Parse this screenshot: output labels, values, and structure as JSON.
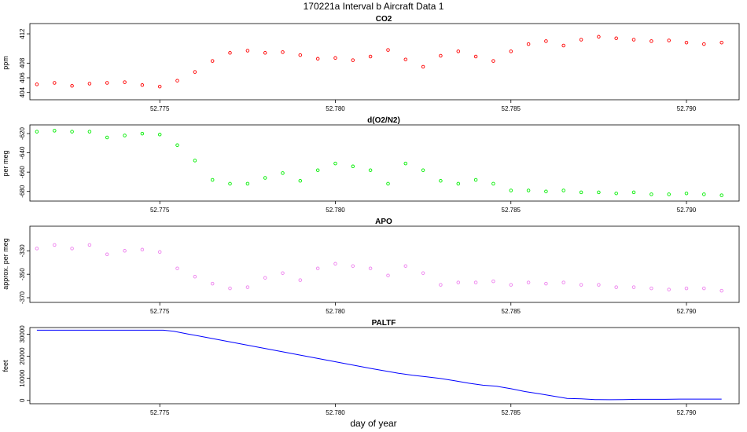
{
  "figure": {
    "title": "170221a   Interval b Aircraft Data 1",
    "xlabel": "day of year"
  },
  "chart_data": [
    {
      "type": "scatter",
      "title": "CO2",
      "ylabel": "ppm",
      "xlim": [
        52.7713,
        52.7915
      ],
      "ylim": [
        403.0,
        413.4
      ],
      "x_ticks": [
        "52.775",
        "52.780",
        "52.785",
        "52.790"
      ],
      "y_ticks": [
        "404",
        "406",
        "408",
        "412"
      ],
      "color": "#ff0000",
      "series": [
        {
          "x": [
            52.7715,
            52.772,
            52.7725,
            52.773,
            52.7735,
            52.774,
            52.7745,
            52.775,
            52.7755,
            52.776,
            52.7765,
            52.777,
            52.7775,
            52.778,
            52.7785,
            52.779,
            52.7795,
            52.78,
            52.7805,
            52.781,
            52.7815,
            52.782,
            52.7825,
            52.783,
            52.7835,
            52.784,
            52.7845,
            52.785,
            52.7855,
            52.786,
            52.7865,
            52.787,
            52.7875,
            52.788,
            52.7885,
            52.789,
            52.7895,
            52.79,
            52.7905,
            52.791
          ],
          "y": [
            405.1,
            405.3,
            404.9,
            405.2,
            405.3,
            405.4,
            405.0,
            404.8,
            405.6,
            406.8,
            408.3,
            409.4,
            409.7,
            409.4,
            409.5,
            409.1,
            408.6,
            408.7,
            408.4,
            408.9,
            409.8,
            408.5,
            407.5,
            409.0,
            409.6,
            408.9,
            408.3,
            409.6,
            410.6,
            411.0,
            410.4,
            411.2,
            411.6,
            411.4,
            411.2,
            411.0,
            411.1,
            410.8,
            410.6,
            410.8
          ]
        }
      ]
    },
    {
      "type": "scatter",
      "title": "d(O2/N2)",
      "ylabel": "per meg",
      "xlim": [
        52.7713,
        52.7915
      ],
      "ylim": [
        -690,
        -611
      ],
      "x_ticks": [
        "52.775",
        "52.780",
        "52.785",
        "52.790"
      ],
      "y_ticks": [
        "-620",
        "-640",
        "-660",
        "-680"
      ],
      "color": "#00ee00",
      "series": [
        {
          "x": [
            52.7715,
            52.772,
            52.7725,
            52.773,
            52.7735,
            52.774,
            52.7745,
            52.775,
            52.7755,
            52.776,
            52.7765,
            52.777,
            52.7775,
            52.778,
            52.7785,
            52.779,
            52.7795,
            52.78,
            52.7805,
            52.781,
            52.7815,
            52.782,
            52.7825,
            52.783,
            52.7835,
            52.784,
            52.7845,
            52.785,
            52.7855,
            52.786,
            52.7865,
            52.787,
            52.7875,
            52.788,
            52.7885,
            52.789,
            52.7895,
            52.79,
            52.7905,
            52.791
          ],
          "y": [
            -618,
            -617,
            -618,
            -618,
            -624,
            -622,
            -620,
            -621,
            -632,
            -648,
            -668,
            -672,
            -672,
            -666,
            -661,
            -669,
            -658,
            -651,
            -654,
            -658,
            -672,
            -651,
            -658,
            -669,
            -672,
            -668,
            -672,
            -679,
            -679,
            -680,
            -679,
            -681,
            -681,
            -682,
            -681,
            -683,
            -683,
            -682,
            -683,
            -684
          ]
        }
      ]
    },
    {
      "type": "scatter",
      "title": "APO",
      "ylabel": "approx. per meg",
      "xlim": [
        52.7713,
        52.7915
      ],
      "ylim": [
        -374,
        -309
      ],
      "x_ticks": [
        "52.775",
        "52.780",
        "52.785",
        "52.790"
      ],
      "y_ticks": [
        "-330",
        "-350",
        "-370"
      ],
      "color": "#ee82ee",
      "series": [
        {
          "x": [
            52.7715,
            52.772,
            52.7725,
            52.773,
            52.7735,
            52.774,
            52.7745,
            52.775,
            52.7755,
            52.776,
            52.7765,
            52.777,
            52.7775,
            52.778,
            52.7785,
            52.779,
            52.7795,
            52.78,
            52.7805,
            52.781,
            52.7815,
            52.782,
            52.7825,
            52.783,
            52.7835,
            52.784,
            52.7845,
            52.785,
            52.7855,
            52.786,
            52.7865,
            52.787,
            52.7875,
            52.788,
            52.7885,
            52.789,
            52.7895,
            52.79,
            52.7905,
            52.791
          ],
          "y": [
            -328,
            -325,
            -328,
            -325,
            -333,
            -330,
            -329,
            -331,
            -345,
            -352,
            -358,
            -362,
            -361,
            -353,
            -349,
            -355,
            -345,
            -341,
            -343,
            -345,
            -351,
            -343,
            -349,
            -359,
            -357,
            -357,
            -356,
            -359,
            -357,
            -358,
            -357,
            -359,
            -359,
            -361,
            -361,
            -362,
            -363,
            -362,
            -362,
            -364
          ]
        }
      ]
    },
    {
      "type": "line",
      "title": "PALTF",
      "ylabel": "feet",
      "xlim": [
        52.7713,
        52.7915
      ],
      "ylim": [
        -1500,
        33000
      ],
      "x_ticks": [
        "52.775",
        "52.780",
        "52.785",
        "52.790"
      ],
      "y_ticks": [
        "0",
        "10000",
        "20000",
        "30000"
      ],
      "color": "#0000ff",
      "series": [
        {
          "x": [
            52.7715,
            52.7719,
            52.7723,
            52.7727,
            52.7731,
            52.7735,
            52.7739,
            52.7743,
            52.7747,
            52.7751,
            52.7754,
            52.7758,
            52.7762,
            52.7766,
            52.777,
            52.7774,
            52.7778,
            52.7782,
            52.7786,
            52.779,
            52.7794,
            52.7798,
            52.7802,
            52.7806,
            52.781,
            52.7814,
            52.7818,
            52.7822,
            52.7826,
            52.783,
            52.7834,
            52.7838,
            52.7842,
            52.7846,
            52.785,
            52.7854,
            52.7858,
            52.7862,
            52.7866,
            52.787,
            52.7874,
            52.7878,
            52.7882,
            52.7886,
            52.789,
            52.7894,
            52.7898,
            52.7902,
            52.7906,
            52.791
          ],
          "y": [
            31800,
            31800,
            31800,
            31800,
            31800,
            31800,
            31800,
            31800,
            31800,
            31800,
            31300,
            30100,
            28900,
            27700,
            26500,
            25300,
            24100,
            22900,
            21700,
            20500,
            19300,
            18100,
            16900,
            15700,
            14500,
            13400,
            12300,
            11400,
            10700,
            9900,
            8900,
            7800,
            6900,
            6400,
            5300,
            4000,
            3000,
            2000,
            900,
            700,
            400,
            300,
            400,
            500,
            500,
            500,
            600,
            600,
            600,
            600
          ]
        }
      ]
    }
  ]
}
